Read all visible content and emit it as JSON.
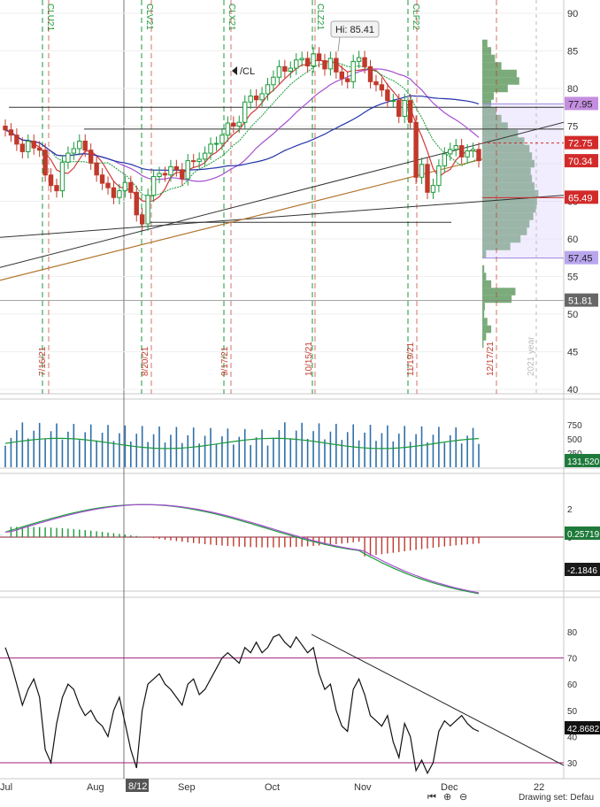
{
  "chart_data": [
    {
      "type": "candlestick",
      "panel": "price",
      "ylim": [
        38,
        92
      ],
      "y_ticks": [
        "40",
        "45",
        "50",
        "55",
        "60",
        "65",
        "70",
        "75",
        "80",
        "85",
        "90"
      ],
      "hi_annotation": "Hi: 85.41",
      "symbol_label": "/CL",
      "price_badges": [
        {
          "value": "77.95",
          "color": "#c48ee0"
        },
        {
          "value": "72.75",
          "color": "#d22a2a"
        },
        {
          "value": "70.34",
          "color": "#d22a2a"
        },
        {
          "value": "65.49",
          "color": "#d22a2a"
        },
        {
          "value": "57.45",
          "color": "#b9a6ee"
        },
        {
          "value": "51.81",
          "color": "#666666"
        }
      ],
      "expiration_markers": [
        {
          "label": "CLU21",
          "color": "#1a9a3a"
        },
        {
          "label": "CLV21",
          "color": "#1a9a3a"
        },
        {
          "label": "CLX21",
          "color": "#1a9a3a"
        },
        {
          "label": "CLZ21",
          "color": "#1a9a3a"
        },
        {
          "label": "CLF22",
          "color": "#1a9a3a"
        }
      ],
      "date_markers": [
        {
          "label": "7/16/21",
          "color": "#c0392b"
        },
        {
          "label": "8/20/21",
          "color": "#c0392b"
        },
        {
          "label": "9/17/21",
          "color": "#c0392b"
        },
        {
          "label": "10/15/21",
          "color": "#c0392b"
        },
        {
          "label": "11/19/21",
          "color": "#c0392b"
        },
        {
          "label": "12/17/21",
          "color": "#c0392b"
        }
      ],
      "year_marker": "2021 year",
      "closes": [
        74.5,
        73.8,
        72.6,
        71.6,
        73.0,
        72.1,
        71.8,
        68.5,
        67.1,
        66.4,
        70.2,
        71.4,
        72.0,
        73.0,
        71.8,
        70.1,
        68.5,
        67.4,
        66.8,
        65.5,
        66.4,
        67.5,
        66.2,
        63.2,
        62.0,
        65.8,
        68.3,
        68.7,
        68.5,
        69.6,
        69.2,
        68.0,
        70.4,
        70.3,
        70.6,
        71.4,
        72.6,
        72.7,
        73.8,
        75.4,
        75.0,
        75.5,
        78.2,
        79.0,
        78.5,
        79.3,
        80.5,
        81.5,
        82.9,
        82.3,
        82.7,
        83.8,
        84.0,
        83.0,
        84.6,
        83.7,
        82.6,
        84.0,
        82.2,
        81.3,
        80.9,
        83.6,
        84.1,
        82.9,
        80.9,
        80.5,
        79.8,
        78.4,
        78.4,
        76.3,
        78.4,
        75.5,
        68.2,
        69.9,
        66.2,
        67.1,
        69.7,
        71.3,
        71.9,
        72.4,
        70.9,
        71.7,
        71.9,
        70.4
      ]
    },
    {
      "type": "bar",
      "panel": "volume",
      "y_ticks": [
        "750",
        "500",
        "250"
      ],
      "last_value": "131,520",
      "color": "#2e6fa8"
    },
    {
      "type": "line",
      "panel": "macd",
      "y_ticks": [
        "2",
        "0"
      ],
      "badges": [
        "0.25719",
        "-2.1846"
      ]
    },
    {
      "type": "line",
      "panel": "rsi",
      "y_ticks": [
        "80",
        "70",
        "60",
        "50",
        "40",
        "30"
      ],
      "bands": [
        70,
        30
      ],
      "last_value": "42.8682",
      "values": [
        74,
        68,
        60,
        52,
        58,
        62,
        55,
        35,
        30,
        45,
        55,
        60,
        58,
        52,
        48,
        50,
        46,
        44,
        40,
        50,
        55,
        45,
        35,
        28,
        50,
        60,
        62,
        64,
        60,
        58,
        55,
        52,
        60,
        62,
        56,
        58,
        62,
        66,
        70,
        72,
        70,
        68,
        74,
        72,
        76,
        72,
        74,
        78,
        79,
        76,
        74,
        78,
        75,
        72,
        74,
        64,
        58,
        60,
        50,
        44,
        42,
        58,
        62,
        56,
        48,
        46,
        44,
        48,
        38,
        32,
        45,
        40,
        27,
        31,
        26,
        30,
        42,
        46,
        44,
        46,
        48,
        45,
        43,
        42
      ]
    }
  ],
  "x_axis": {
    "labels": [
      "Jul",
      "Aug",
      "8/12",
      "Sep",
      "Oct",
      "Nov",
      "Dec",
      "22"
    ]
  },
  "toolbar": {
    "drawing_set": "Drawing set: Defau"
  }
}
